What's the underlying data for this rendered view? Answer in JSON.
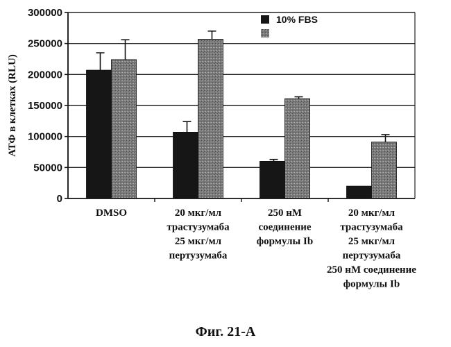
{
  "chart_data": {
    "type": "bar",
    "categories": [
      [
        "DMSO"
      ],
      [
        "20 мкг/мл",
        "трастузумаба",
        "25 мкг/мл",
        "пертузумаба"
      ],
      [
        "250 нМ",
        "соединение",
        "формулы Ib"
      ],
      [
        "20 мкг/мл",
        "трастузумаба",
        "25 мкг/мл",
        "пертузумаба",
        "250 нМ соединение",
        "формулы Ib"
      ]
    ],
    "series": [
      {
        "name": "10% FBS",
        "values": [
          207000,
          107000,
          60000,
          20000
        ],
        "errors": [
          28000,
          17000,
          3000,
          0
        ],
        "color": "#161616"
      },
      {
        "name": "",
        "values": [
          224000,
          257000,
          161000,
          91000
        ],
        "errors": [
          32000,
          13000,
          3000,
          12000
        ],
        "color": "#7a7a7a"
      }
    ],
    "ylabel": "АТФ в клетках (RLU)",
    "ylim": [
      0,
      300000
    ],
    "yticks": [
      0,
      50000,
      100000,
      150000,
      200000,
      250000,
      300000
    ],
    "grid": true,
    "legend": "top-right"
  },
  "figure_caption": "Фиг. 21-A"
}
